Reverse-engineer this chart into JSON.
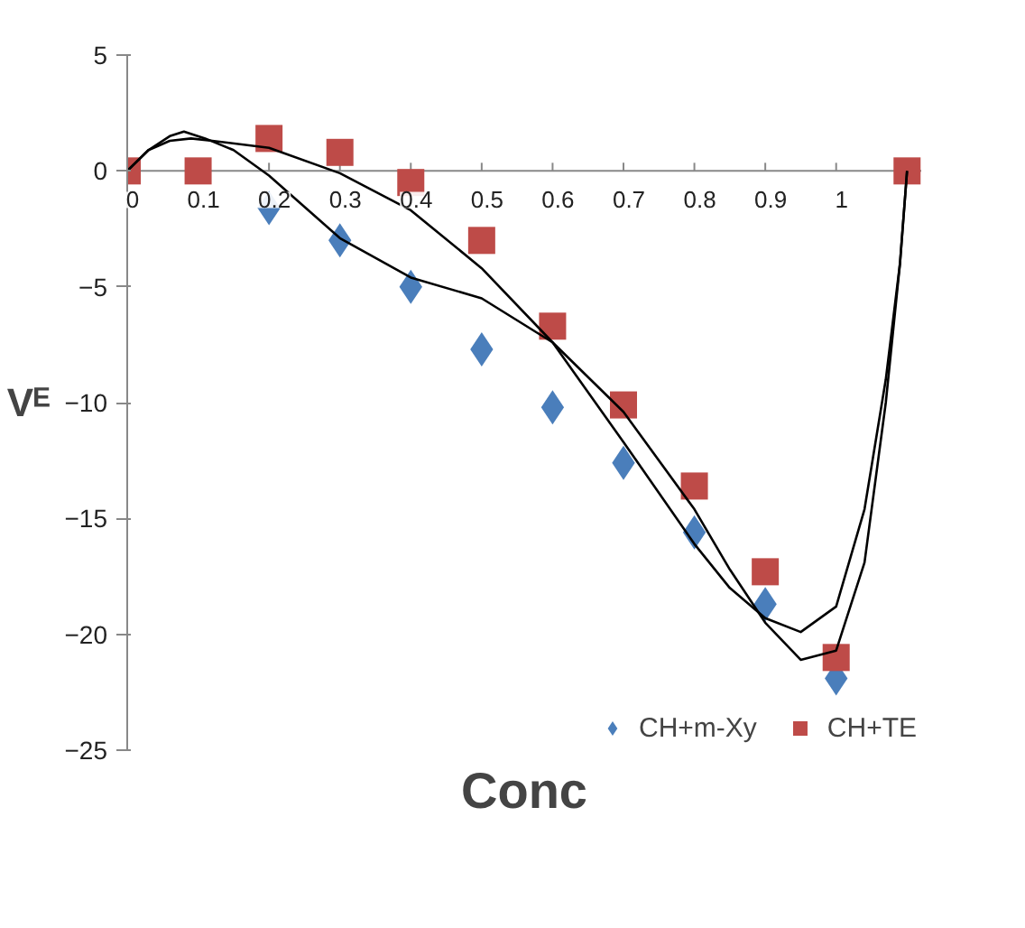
{
  "chart_data": {
    "type": "scatter",
    "xlabel": "Conc",
    "ylabel": "Vᴱ",
    "x": [
      0,
      0.1,
      0.2,
      0.3,
      0.4,
      0.5,
      0.6,
      0.7,
      0.8,
      0.9,
      1,
      1.1
    ],
    "series": [
      {
        "name": "CH+m-Xy",
        "color": "#4a7ebb",
        "marker": "diamond",
        "values": [
          null,
          null,
          -1.6,
          -3.0,
          -5.0,
          -7.7,
          -10.2,
          -12.6,
          -15.6,
          -18.7,
          -21.9,
          null
        ]
      },
      {
        "name": "CH+TE",
        "color": "#be4b48",
        "marker": "square",
        "values": [
          0,
          0,
          1.4,
          0.8,
          -0.5,
          -3.0,
          -6.7,
          -10.1,
          -13.6,
          -17.3,
          -21.0,
          0
        ]
      },
      {
        "type": "line",
        "color": "#000000",
        "x": [
          0,
          0.03,
          0.06,
          0.09,
          0.12,
          0.2,
          0.3,
          0.4,
          0.5,
          0.6,
          0.7,
          0.8,
          0.85,
          0.9,
          0.95,
          1.0,
          1.04,
          1.07,
          1.09,
          1.1
        ],
        "values": [
          0,
          0.9,
          1.3,
          1.4,
          1.3,
          1.0,
          -0.1,
          -1.7,
          -4.2,
          -7.4,
          -11.7,
          -16.1,
          -18.0,
          -19.3,
          -19.9,
          -18.8,
          -14.6,
          -9.0,
          -4.0,
          0
        ]
      },
      {
        "type": "line",
        "color": "#000000",
        "x": [
          0,
          0.03,
          0.06,
          0.08,
          0.11,
          0.15,
          0.2,
          0.3,
          0.4,
          0.5,
          0.6,
          0.7,
          0.8,
          0.85,
          0.9,
          0.95,
          1.0,
          1.04,
          1.07,
          1.09,
          1.1
        ],
        "values": [
          0,
          0.9,
          1.5,
          1.7,
          1.4,
          0.9,
          -0.2,
          -2.9,
          -4.6,
          -5.5,
          -7.4,
          -10.4,
          -14.6,
          -17.2,
          -19.5,
          -21.1,
          -20.7,
          -16.9,
          -10.0,
          -4.0,
          0
        ]
      }
    ],
    "xlim": [
      0,
      1.12
    ],
    "ylim": [
      -25,
      5
    ],
    "xticks": [
      0,
      0.1,
      0.2,
      0.3,
      0.4,
      0.5,
      0.6,
      0.7,
      0.8,
      0.9,
      1
    ],
    "yticks": [
      -25,
      -20,
      -15,
      -10,
      -5,
      0,
      5
    ],
    "grid": false,
    "legend": "bottom right"
  }
}
